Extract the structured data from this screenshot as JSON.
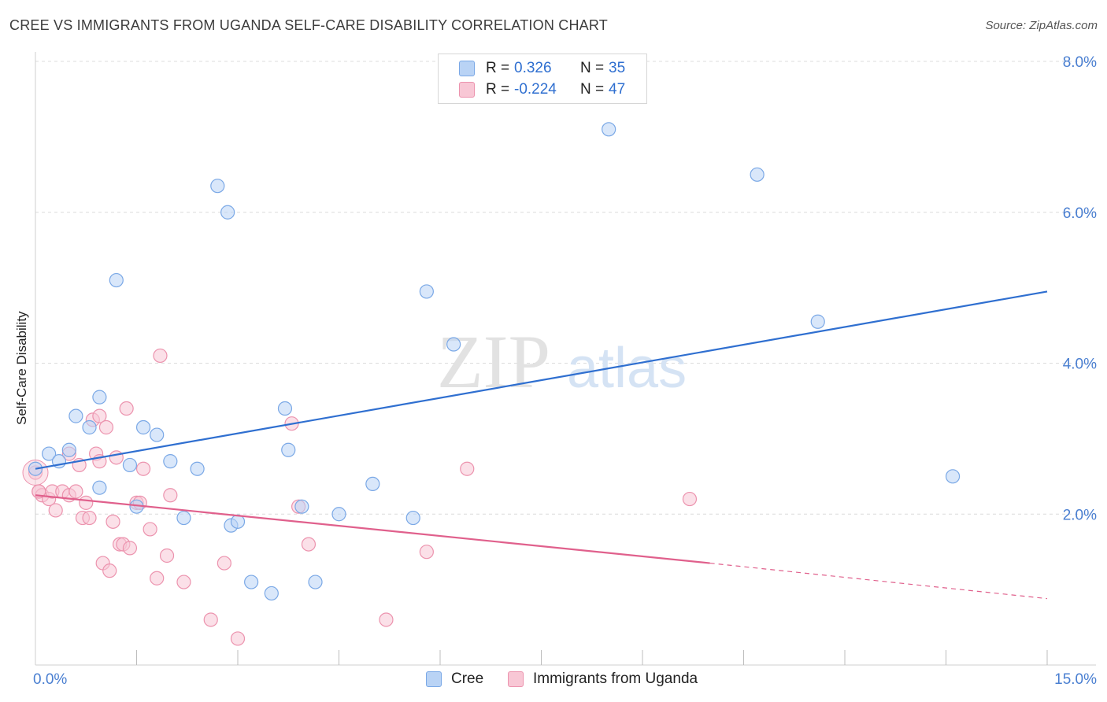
{
  "title": "CREE VS IMMIGRANTS FROM UGANDA SELF-CARE DISABILITY CORRELATION CHART",
  "source": "Source: ZipAtlas.com",
  "watermark": {
    "zip": "ZIP",
    "atlas": "atlas"
  },
  "legend": {
    "rows": [
      {
        "r_label": "R =",
        "r_value": "0.326",
        "n_label": "N =",
        "n_value": "35"
      },
      {
        "r_label": "R =",
        "r_value": "-0.224",
        "n_label": "N =",
        "n_value": "47"
      }
    ]
  },
  "bottom_legend": [
    "Cree",
    "Immigrants from Uganda"
  ],
  "colors": {
    "cree": "#7aa8e6",
    "cree_fill": "#b9d3f5",
    "cree_line": "#2f6fd0",
    "uganda": "#ec93ae",
    "uganda_fill": "#f8c7d5",
    "uganda_line": "#e0608c",
    "tick_label": "#4a7fd1"
  },
  "chart_data": {
    "type": "scatter",
    "title": "CREE VS IMMIGRANTS FROM UGANDA SELF-CARE DISABILITY CORRELATION CHART",
    "xlabel": "",
    "ylabel": "Self-Care Disability",
    "xlim": [
      0,
      15
    ],
    "ylim": [
      0,
      8.0
    ],
    "x_tick_labels": [
      "0.0%",
      "15.0%"
    ],
    "y_ticks": [
      2.0,
      4.0,
      6.0,
      8.0
    ],
    "y_tick_labels": [
      "2.0%",
      "4.0%",
      "6.0%",
      "8.0%"
    ],
    "grid": true,
    "legend_position": "top-center",
    "series": [
      {
        "name": "Cree",
        "points": [
          [
            0.0,
            2.6
          ],
          [
            0.2,
            2.8
          ],
          [
            0.35,
            2.7
          ],
          [
            0.5,
            2.85
          ],
          [
            0.6,
            3.3
          ],
          [
            0.8,
            3.15
          ],
          [
            0.95,
            3.55
          ],
          [
            0.95,
            2.35
          ],
          [
            1.2,
            5.1
          ],
          [
            1.4,
            2.65
          ],
          [
            1.5,
            2.1
          ],
          [
            1.6,
            3.15
          ],
          [
            1.8,
            3.05
          ],
          [
            2.0,
            2.7
          ],
          [
            2.2,
            1.95
          ],
          [
            2.4,
            2.6
          ],
          [
            2.7,
            6.35
          ],
          [
            2.85,
            6.0
          ],
          [
            2.9,
            1.85
          ],
          [
            3.0,
            1.9
          ],
          [
            3.2,
            1.1
          ],
          [
            3.5,
            0.95
          ],
          [
            3.7,
            3.4
          ],
          [
            3.75,
            2.85
          ],
          [
            3.95,
            2.1
          ],
          [
            4.15,
            1.1
          ],
          [
            4.5,
            2.0
          ],
          [
            5.0,
            2.4
          ],
          [
            5.6,
            1.95
          ],
          [
            5.8,
            4.95
          ],
          [
            6.2,
            4.25
          ],
          [
            8.5,
            7.1
          ],
          [
            10.7,
            6.5
          ],
          [
            11.6,
            4.55
          ],
          [
            13.6,
            2.5
          ]
        ],
        "trend": {
          "x": [
            0,
            15
          ],
          "y": [
            2.6,
            4.95
          ]
        }
      },
      {
        "name": "Immigrants from Uganda",
        "points": [
          [
            0.0,
            2.55
          ],
          [
            0.05,
            2.3
          ],
          [
            0.1,
            2.25
          ],
          [
            0.2,
            2.2
          ],
          [
            0.25,
            2.3
          ],
          [
            0.3,
            2.05
          ],
          [
            0.4,
            2.3
          ],
          [
            0.5,
            2.25
          ],
          [
            0.5,
            2.8
          ],
          [
            0.6,
            2.3
          ],
          [
            0.65,
            2.65
          ],
          [
            0.7,
            1.95
          ],
          [
            0.75,
            2.15
          ],
          [
            0.8,
            1.95
          ],
          [
            0.85,
            3.25
          ],
          [
            0.9,
            2.8
          ],
          [
            0.95,
            2.7
          ],
          [
            0.95,
            3.3
          ],
          [
            1.0,
            1.35
          ],
          [
            1.05,
            3.15
          ],
          [
            1.1,
            1.25
          ],
          [
            1.15,
            1.9
          ],
          [
            1.2,
            2.75
          ],
          [
            1.25,
            1.6
          ],
          [
            1.3,
            1.6
          ],
          [
            1.35,
            3.4
          ],
          [
            1.4,
            1.55
          ],
          [
            1.5,
            2.15
          ],
          [
            1.55,
            2.15
          ],
          [
            1.6,
            2.6
          ],
          [
            1.7,
            1.8
          ],
          [
            1.8,
            1.15
          ],
          [
            1.85,
            4.1
          ],
          [
            1.95,
            1.45
          ],
          [
            2.0,
            2.25
          ],
          [
            2.2,
            1.1
          ],
          [
            2.6,
            0.6
          ],
          [
            2.8,
            1.35
          ],
          [
            3.0,
            0.35
          ],
          [
            3.8,
            3.2
          ],
          [
            3.9,
            2.1
          ],
          [
            4.05,
            1.6
          ],
          [
            5.2,
            0.6
          ],
          [
            5.8,
            1.5
          ],
          [
            6.4,
            2.6
          ],
          [
            9.7,
            2.2
          ],
          [
            0.05,
            2.3
          ]
        ],
        "trend_solid": {
          "x": [
            0,
            10.0
          ],
          "y": [
            2.25,
            1.35
          ]
        },
        "trend_dashed": {
          "x": [
            10.0,
            15
          ],
          "y": [
            1.35,
            0.88
          ]
        }
      }
    ]
  }
}
